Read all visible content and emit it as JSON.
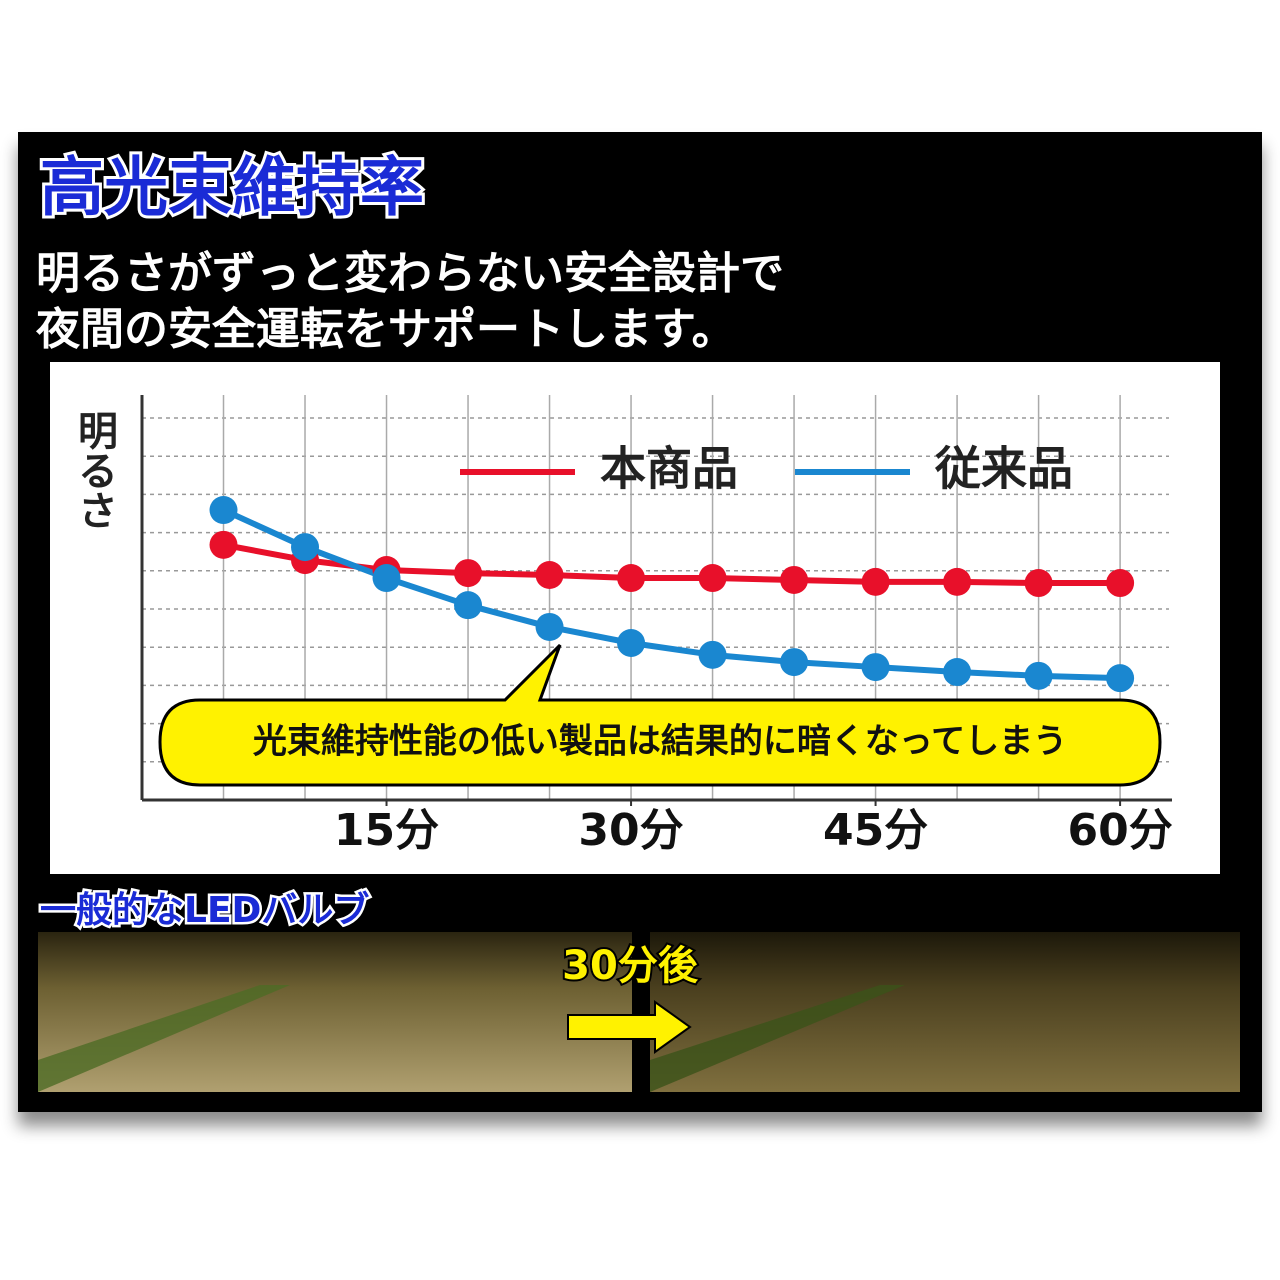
{
  "chart_data": {
    "type": "line",
    "title": "高光束維持率",
    "subtitle": [
      "明るさがずっと変わらない安全設計で",
      "夜間の安全運転をサポートします。"
    ],
    "ylabel": "明るさ",
    "annotation": "光束維持性能の低い製品は結果的に暗くなってしまう",
    "x": [
      5,
      10,
      15,
      20,
      25,
      30,
      35,
      40,
      45,
      50,
      55,
      60
    ],
    "series": [
      {
        "name": "本商品",
        "color": "#e8102a",
        "values": [
          66.8,
          62.8,
          60.2,
          59.4,
          58.9,
          58.1,
          58.1,
          57.6,
          57.1,
          57.1,
          56.8,
          56.8
        ]
      },
      {
        "name": "従来品",
        "color": "#1a87d0",
        "values": [
          75.9,
          66.2,
          58.1,
          51.0,
          45.3,
          41.1,
          38.0,
          36.1,
          34.8,
          33.5,
          32.5,
          31.9
        ]
      }
    ],
    "xlim": [
      0,
      63
    ],
    "xticks": [
      {
        "value": 15,
        "label": "15分"
      },
      {
        "value": 30,
        "label": "30分"
      },
      {
        "value": 45,
        "label": "45分"
      },
      {
        "value": 60,
        "label": "60分"
      }
    ],
    "ylim": [
      0,
      100
    ],
    "yticks": [
      0,
      10,
      20,
      30,
      40,
      50,
      60,
      70,
      80,
      90,
      100
    ],
    "grid": true,
    "legend": "top"
  },
  "photo": {
    "caption": "一般的なLEDバルブ",
    "annotation": "30分後"
  }
}
